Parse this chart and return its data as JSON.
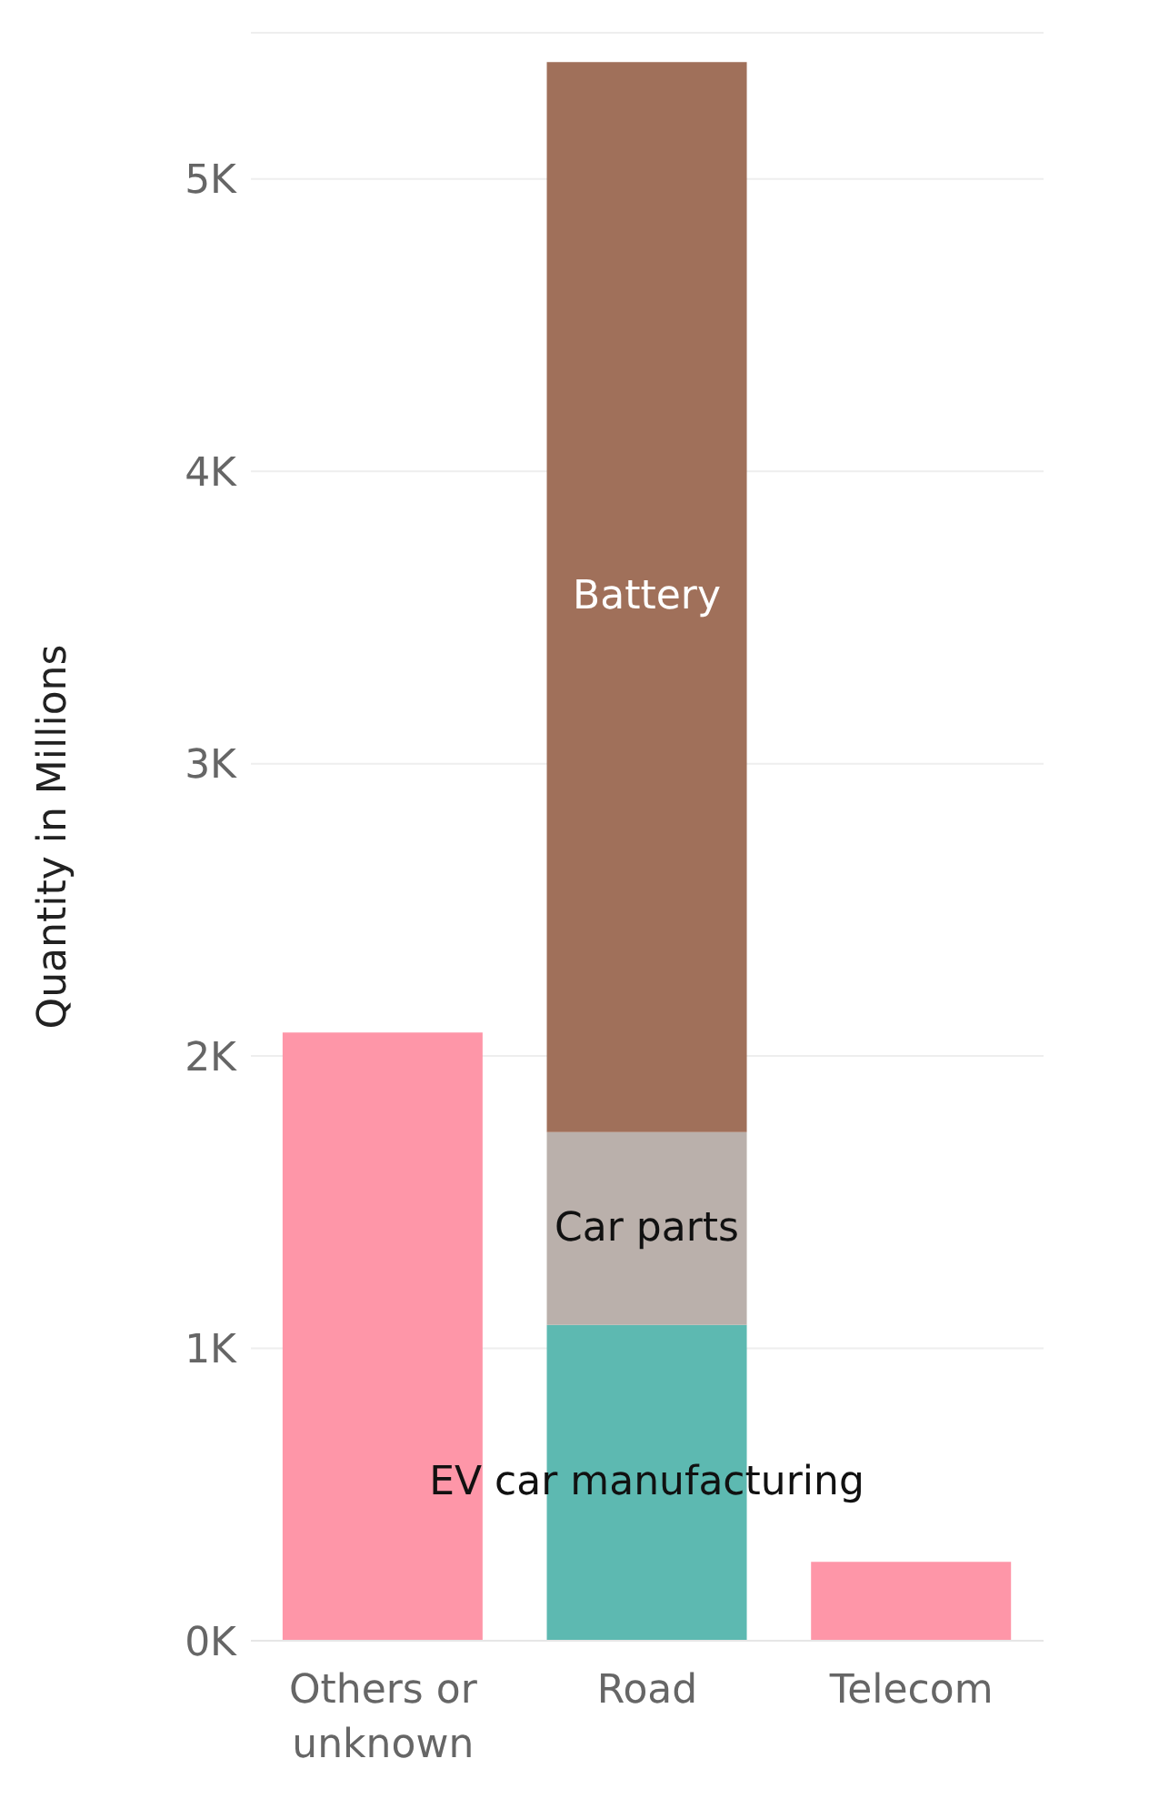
{
  "chart_data": {
    "type": "bar",
    "stacked": true,
    "ylabel": "Quantity in Millions",
    "categories": [
      "Others or unknown",
      "Road",
      "Telecom"
    ],
    "series": [
      {
        "color": "#fe96a8",
        "values": [
          2080,
          null,
          270
        ]
      },
      {
        "name": "EV car manufacturing",
        "color": "#5db9b1",
        "values": [
          null,
          1080,
          null
        ]
      },
      {
        "name": "Car parts",
        "color": "#bab0ab",
        "values": [
          null,
          660,
          null
        ]
      },
      {
        "name": "Battery",
        "color": "#a0705a",
        "values": [
          null,
          3660,
          null
        ]
      }
    ],
    "ylim": [
      0,
      5500
    ],
    "yticks": [
      {
        "value": 0,
        "label": "0K"
      },
      {
        "value": 1000,
        "label": "1K"
      },
      {
        "value": 2000,
        "label": "2K"
      },
      {
        "value": 3000,
        "label": "3K"
      },
      {
        "value": 4000,
        "label": "4K"
      },
      {
        "value": 5000,
        "label": "5K"
      }
    ],
    "grid": "y",
    "legend": false
  }
}
